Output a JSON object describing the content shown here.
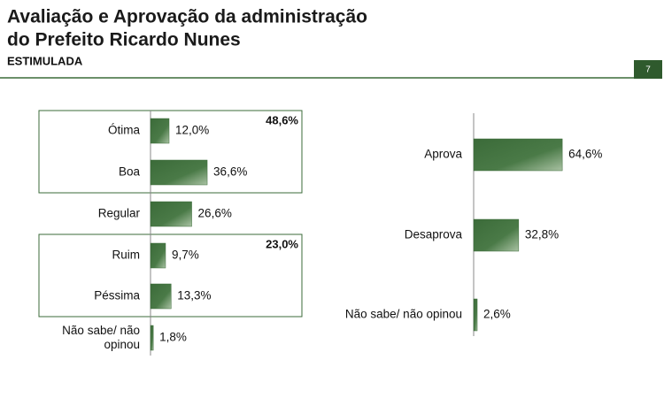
{
  "header": {
    "title_line1": "Avaliação e Aprovação da administração",
    "title_line2": "do Prefeito Ricardo Nunes",
    "subtitle": "ESTIMULADA",
    "page_number": "7"
  },
  "chart_data": [
    {
      "type": "bar",
      "orientation": "horizontal",
      "color": "#3b6b39",
      "categories": [
        "Ótima",
        "Boa",
        "Regular",
        "Ruim",
        "Péssima",
        "Não sabe/ não opinou"
      ],
      "values": [
        12.0,
        36.6,
        26.6,
        9.7,
        13.3,
        1.8
      ],
      "value_labels": [
        "12,0%",
        "36,6%",
        "26,6%",
        "9,7%",
        "13,3%",
        "1,8%"
      ],
      "annotations": [
        {
          "value": 48.6,
          "label": "48,6%"
        },
        {
          "value": 23.0,
          "label": "23,0%"
        }
      ]
    },
    {
      "type": "bar",
      "orientation": "horizontal",
      "color": "#3b6b39",
      "categories": [
        "Aprova",
        "Desaprova",
        "Não sabe/ não opinou"
      ],
      "values": [
        64.6,
        32.8,
        2.6
      ],
      "value_labels": [
        "64,6%",
        "32,8%",
        "2,6%"
      ]
    }
  ]
}
